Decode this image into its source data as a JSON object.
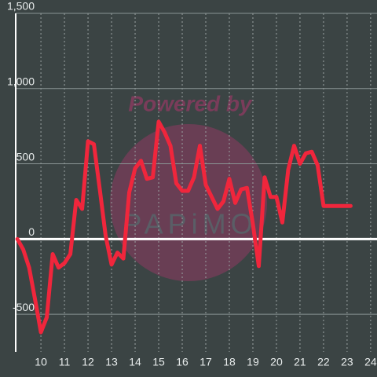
{
  "chart_data": {
    "type": "line",
    "watermark": [
      "Powered by",
      "PAPiMO"
    ],
    "x": [
      9,
      9.25,
      9.5,
      9.75,
      10,
      10.25,
      10.5,
      10.75,
      11,
      11.25,
      11.5,
      11.75,
      12,
      12.25,
      12.5,
      12.75,
      13,
      13.25,
      13.5,
      13.75,
      14,
      14.25,
      14.5,
      14.75,
      15,
      15.25,
      15.5,
      15.75,
      16,
      16.25,
      16.5,
      16.75,
      17,
      17.25,
      17.5,
      17.75,
      18,
      18.25,
      18.5,
      18.75,
      19,
      19.25,
      19.5,
      19.75,
      20,
      20.25,
      20.5,
      20.75,
      21,
      21.25,
      21.5,
      21.75,
      22,
      22.25,
      22.5,
      22.75,
      23,
      23.15
    ],
    "series": [
      {
        "color": "#f0263c",
        "values": [
          0,
          -70,
          -190,
          -400,
          -620,
          -520,
          -100,
          -190,
          -160,
          -100,
          260,
          200,
          650,
          630,
          330,
          20,
          -170,
          -90,
          -130,
          310,
          470,
          520,
          400,
          410,
          780,
          710,
          620,
          370,
          320,
          320,
          410,
          620,
          360,
          280,
          200,
          250,
          400,
          240,
          330,
          340,
          100,
          -180,
          410,
          280,
          280,
          110,
          460,
          620,
          500,
          570,
          580,
          490,
          220,
          220,
          220,
          220,
          220,
          220
        ]
      }
    ],
    "xlim": [
      8.93,
      24.27
    ],
    "xticks": [
      10,
      11,
      12,
      13,
      14,
      15,
      16,
      17,
      18,
      19,
      20,
      21,
      22,
      23,
      24
    ],
    "ylim": [
      -750,
      1500
    ],
    "yticks": [
      {
        "value": -500,
        "label": "-500"
      },
      0,
      500,
      {
        "value": 1000,
        "label": "1,000"
      },
      {
        "value": 1500,
        "label": "1,500"
      }
    ],
    "grid": true
  }
}
